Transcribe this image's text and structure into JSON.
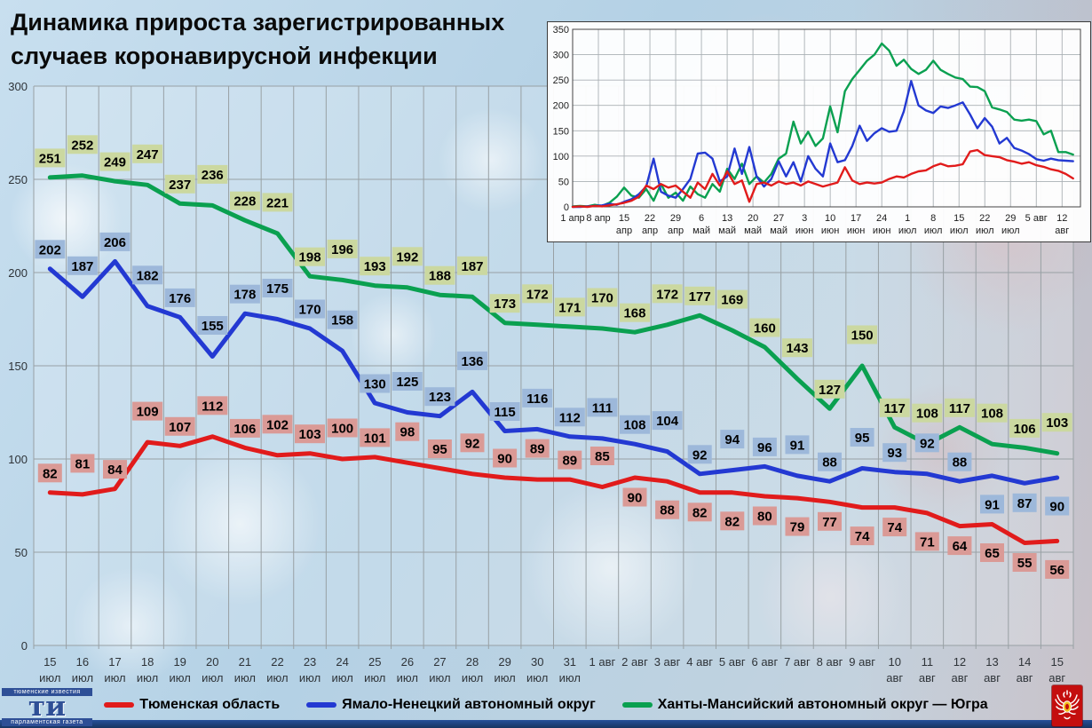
{
  "title": {
    "line1": "Динамика прироста зарегистрированных",
    "line2": "случаев коронавирусной инфекции"
  },
  "colors": {
    "red_line": "#e11b1b",
    "blue_line": "#2339d2",
    "green_line": "#0aa050",
    "red_label_bg": "#da9a96",
    "blue_label_bg": "#9db8da",
    "green_label_bg": "#cbd8a0",
    "grid": "#98a0a4",
    "bottom_bar": "#1e4078"
  },
  "chart_data": [
    {
      "type": "line",
      "title": "Динамика прироста зарегистрированных случаев коронавирусной инфекции",
      "xlabel": "",
      "ylabel": "",
      "ylim": [
        0,
        300
      ],
      "yticks": [
        0,
        50,
        100,
        150,
        200,
        250,
        300
      ],
      "grid": true,
      "data_labels": true,
      "legend_position": "bottom",
      "categories": [
        "15 июл",
        "16 июл",
        "17 июл",
        "18 июл",
        "19 июл",
        "20 июл",
        "21 июл",
        "22 июл",
        "23 июл",
        "24 июл",
        "25 июл",
        "26 июл",
        "27 июл",
        "28 июл",
        "29 июл",
        "30 июл",
        "31 июл",
        "1 авг",
        "2 авг",
        "3 авг",
        "4 авг",
        "5 авг",
        "6 авг",
        "7 авг",
        "8 авг",
        "9 авг",
        "10 авг",
        "11 авг",
        "12 авг",
        "13 авг",
        "14 авг",
        "15 авг"
      ],
      "series": [
        {
          "name": "Тюменская область",
          "color": "#e11b1b",
          "label_bg": "#da9a96",
          "values": [
            82,
            81,
            84,
            109,
            107,
            112,
            106,
            102,
            103,
            100,
            101,
            98,
            95,
            92,
            90,
            89,
            89,
            85,
            90,
            88,
            82,
            82,
            80,
            79,
            77,
            74,
            74,
            71,
            64,
            65,
            55,
            56
          ]
        },
        {
          "name": "Ямало-Ненецкий автономный округ",
          "color": "#2339d2",
          "label_bg": "#9db8da",
          "values": [
            202,
            187,
            206,
            182,
            176,
            155,
            178,
            175,
            170,
            158,
            130,
            125,
            123,
            136,
            115,
            116,
            112,
            111,
            108,
            104,
            92,
            94,
            96,
            91,
            88,
            95,
            93,
            92,
            88,
            91,
            87,
            90
          ]
        },
        {
          "name": "Ханты-Мансийский автономный округ — Югра",
          "color": "#0aa050",
          "label_bg": "#cbd8a0",
          "values": [
            251,
            252,
            249,
            247,
            237,
            236,
            228,
            221,
            198,
            196,
            193,
            192,
            188,
            187,
            173,
            172,
            171,
            170,
            168,
            172,
            177,
            169,
            160,
            143,
            127,
            150,
            117,
            108,
            117,
            108,
            106,
            103
          ]
        }
      ]
    },
    {
      "type": "line",
      "title": "",
      "ylim": [
        0,
        350
      ],
      "yticks": [
        0,
        50,
        100,
        150,
        200,
        250,
        300,
        350
      ],
      "grid": true,
      "data_labels": false,
      "x_domain_days": [
        0,
        138
      ],
      "point_step_days": 2,
      "x_tick_labels": [
        "1 апр",
        "8 апр",
        "15 апр",
        "22 апр",
        "29 апр",
        "6 май",
        "13 май",
        "20 май",
        "27 май",
        "3 июн",
        "10 июн",
        "17 июн",
        "24 июн",
        "1 июл",
        "8 июл",
        "15 июл",
        "22 июл",
        "29 июл",
        "5 авг",
        "12 авг"
      ],
      "series": [
        {
          "name": "Тюменская область",
          "color": "#e11b1b",
          "values_approx": [
            0,
            1,
            0,
            2,
            1,
            3,
            5,
            8,
            12,
            20,
            42,
            35,
            45,
            38,
            42,
            30,
            18,
            48,
            35,
            65,
            42,
            70,
            45,
            52,
            10,
            45,
            48,
            42,
            50,
            45,
            48,
            42,
            50,
            45,
            40,
            44,
            48,
            78,
            52,
            45,
            48,
            46,
            48,
            55,
            60,
            58,
            65,
            70,
            72,
            80,
            85,
            80,
            81,
            84,
            109,
            112,
            102,
            100,
            98,
            92,
            89,
            85,
            88,
            82,
            79,
            74,
            71,
            65,
            56
          ]
        },
        {
          "name": "Ямало-Ненецкий автономный округ",
          "color": "#2339d2",
          "values_approx": [
            0,
            0,
            1,
            2,
            3,
            6,
            4,
            10,
            15,
            25,
            40,
            95,
            30,
            22,
            18,
            35,
            55,
            105,
            107,
            95,
            50,
            60,
            115,
            65,
            118,
            60,
            40,
            55,
            90,
            60,
            88,
            50,
            100,
            75,
            60,
            125,
            88,
            92,
            120,
            160,
            130,
            145,
            155,
            148,
            150,
            188,
            248,
            200,
            190,
            185,
            198,
            195,
            200,
            206,
            182,
            155,
            175,
            158,
            125,
            136,
            116,
            111,
            104,
            94,
            91,
            95,
            92,
            91,
            90
          ]
        },
        {
          "name": "Ханты-Мансийский автономный округ — Югра",
          "color": "#0aa050",
          "values_approx": [
            1,
            2,
            1,
            4,
            2,
            8,
            20,
            38,
            22,
            18,
            35,
            12,
            45,
            18,
            28,
            12,
            40,
            25,
            18,
            45,
            30,
            75,
            55,
            85,
            45,
            60,
            48,
            65,
            95,
            105,
            168,
            125,
            148,
            120,
            135,
            198,
            147,
            228,
            252,
            270,
            288,
            300,
            322,
            308,
            278,
            290,
            272,
            262,
            270,
            288,
            270,
            262,
            255,
            252,
            237,
            236,
            228,
            196,
            192,
            187,
            172,
            170,
            172,
            169,
            143,
            150,
            108,
            108,
            103
          ]
        }
      ]
    }
  ],
  "footer": {
    "left_logo": {
      "top": "тюменские известия",
      "letters": "ти",
      "bottom": "парламентская газета"
    },
    "right_logo_icon": "double-headed-eagle-emblem"
  }
}
